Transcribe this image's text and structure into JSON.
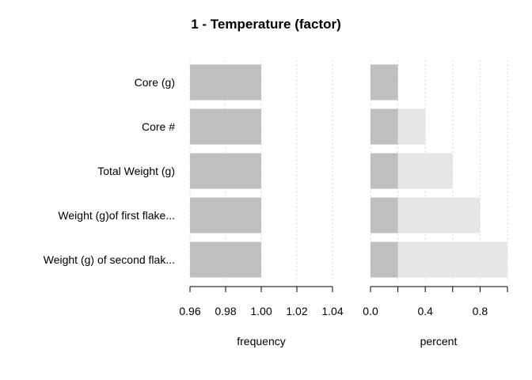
{
  "chart_data": {
    "title": "1 - Temperature (factor)",
    "type": "bar",
    "orientation": "horizontal",
    "categories": [
      "Core (g)",
      "Core #",
      "Total Weight (g)",
      "Weight  (g)of first flake...",
      "Weight (g) of second flak..."
    ],
    "panels": [
      {
        "name": "frequency",
        "xlabel": "frequency",
        "xlim": [
          0.96,
          1.04
        ],
        "ticks": [
          0.96,
          0.98,
          1.0,
          1.02,
          1.04
        ],
        "tick_labels": [
          "0.96",
          "0.98",
          "1.00",
          "1.02",
          "1.04"
        ],
        "grid": true,
        "values": [
          1,
          1,
          1,
          1,
          1
        ]
      },
      {
        "name": "percent",
        "xlabel": "percent",
        "xlim": [
          0,
          1.0
        ],
        "ticks": [
          0.0,
          0.2,
          0.4,
          0.6,
          0.8,
          1.0
        ],
        "tick_labels": [
          "0.0",
          "",
          "0.4",
          "",
          "0.8",
          ""
        ],
        "grid": true,
        "series": [
          {
            "values": [
              0.2,
              0.2,
              0.2,
              0.2,
              0.2
            ],
            "color": "#bfbfbf"
          },
          {
            "values": [
              0.2,
              0.4,
              0.6,
              0.8,
              1.0
            ],
            "color": "#e6e6e6"
          }
        ]
      }
    ],
    "colors": {
      "bar": "#bfbfbf",
      "bar_cumulative": "#e6e6e6",
      "grid": "#d9d9d9"
    }
  }
}
